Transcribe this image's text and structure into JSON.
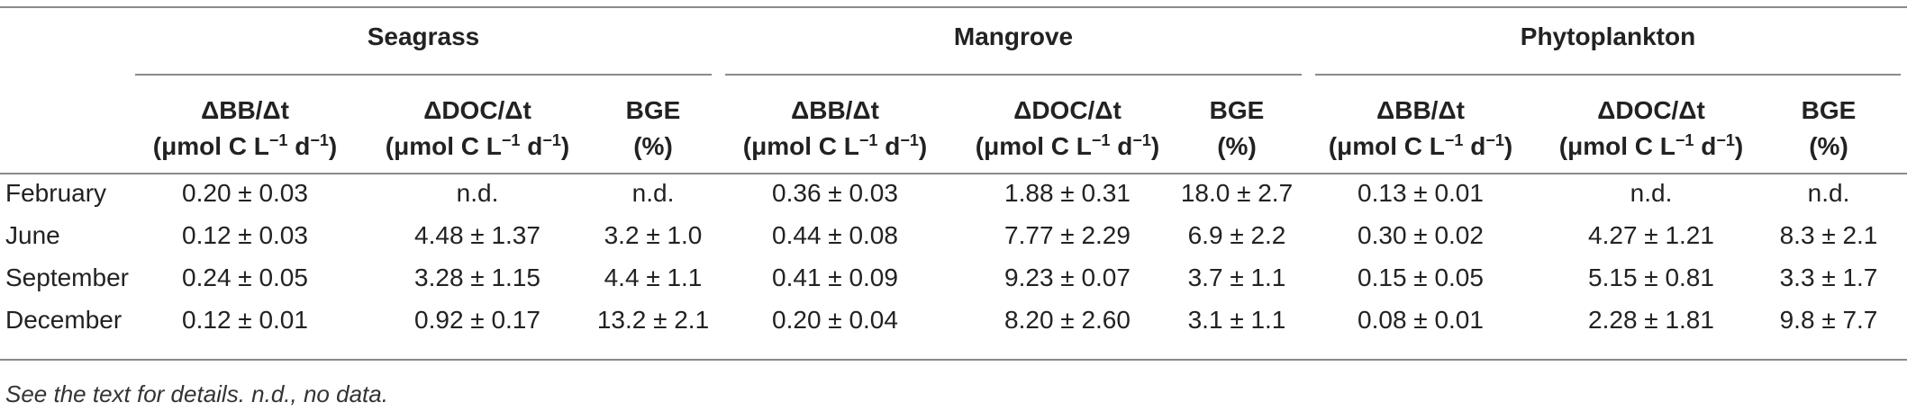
{
  "groups": [
    "Seagrass",
    "Mangrove",
    "Phytoplankton"
  ],
  "columns": [
    {
      "name": "ΔBB/Δt",
      "unit": "(μmol C L",
      "exp": "−1",
      "unit_tail": " d",
      "exp2": "−1",
      "close": ")"
    },
    {
      "name": "ΔDOC/Δt",
      "unit": "(μmol C L",
      "exp": "−1",
      "unit_tail": " d",
      "exp2": "−1",
      "close": ")"
    },
    {
      "name": "BGE",
      "unit": "(%)"
    }
  ],
  "rows": [
    {
      "label": "February",
      "cells": [
        "0.20 ± 0.03",
        "n.d.",
        "n.d.",
        "0.36 ± 0.03",
        "1.88 ± 0.31",
        "18.0 ± 2.7",
        "0.13 ± 0.01",
        "n.d.",
        "n.d."
      ]
    },
    {
      "label": "June",
      "cells": [
        "0.12 ± 0.03",
        "4.48 ± 1.37",
        "3.2 ± 1.0",
        "0.44 ± 0.08",
        "7.77 ± 2.29",
        "6.9 ± 2.2",
        "0.30 ± 0.02",
        "4.27 ± 1.21",
        "8.3 ± 2.1"
      ]
    },
    {
      "label": "September",
      "cells": [
        "0.24 ± 0.05",
        "3.28 ± 1.15",
        "4.4 ± 1.1",
        "0.41 ± 0.09",
        "9.23 ± 0.07",
        "3.7 ± 1.1",
        "0.15 ± 0.05",
        "5.15 ± 0.81",
        "3.3 ± 1.7"
      ]
    },
    {
      "label": "December",
      "cells": [
        "0.12 ± 0.01",
        "0.92 ± 0.17",
        "13.2 ± 2.1",
        "0.20 ± 0.04",
        "8.20 ± 2.60",
        "3.1 ± 1.1",
        "0.08 ± 0.01",
        "2.28 ± 1.81",
        "9.8 ± 7.7"
      ]
    }
  ],
  "footnote": "See the text for details. n.d., no data."
}
